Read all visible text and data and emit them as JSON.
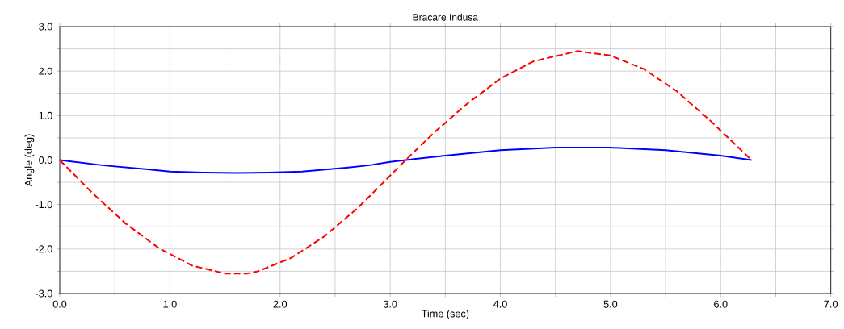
{
  "chart_data": {
    "type": "line",
    "title": "Bracare Indusa",
    "xlabel": "Time (sec)",
    "ylabel": "Angle (deg)",
    "xlim": [
      0,
      7
    ],
    "ylim": [
      -3,
      3
    ],
    "xticks": [
      {
        "value": 0,
        "label": "0.0"
      },
      {
        "value": 0.5,
        "label": null
      },
      {
        "value": 1,
        "label": "1.0"
      },
      {
        "value": 1.5,
        "label": null
      },
      {
        "value": 2,
        "label": "2.0"
      },
      {
        "value": 2.5,
        "label": null
      },
      {
        "value": 3,
        "label": "3.0"
      },
      {
        "value": 3.5,
        "label": null
      },
      {
        "value": 4,
        "label": "4.0"
      },
      {
        "value": 4.5,
        "label": null
      },
      {
        "value": 5,
        "label": "5.0"
      },
      {
        "value": 5.5,
        "label": null
      },
      {
        "value": 6,
        "label": "6.0"
      },
      {
        "value": 6.5,
        "label": null
      },
      {
        "value": 7,
        "label": "7.0"
      }
    ],
    "yticks": [
      {
        "value": -3,
        "label": "-3.0"
      },
      {
        "value": -2.5,
        "label": null
      },
      {
        "value": -2,
        "label": "-2.0"
      },
      {
        "value": -1.5,
        "label": null
      },
      {
        "value": -1,
        "label": "-1.0"
      },
      {
        "value": -0.5,
        "label": null
      },
      {
        "value": 0,
        "label": "0.0"
      },
      {
        "value": 0.5,
        "label": null
      },
      {
        "value": 1,
        "label": "1.0"
      },
      {
        "value": 1.5,
        "label": null
      },
      {
        "value": 2,
        "label": "2.0"
      },
      {
        "value": 2.5,
        "label": null
      },
      {
        "value": 3,
        "label": "3.0"
      }
    ],
    "grid": true,
    "marker": "none",
    "ref_lines": [
      {
        "axis": "y",
        "value": 0,
        "color": "#000000",
        "line_style": "solid"
      }
    ],
    "series": [
      {
        "color": "#0000ff",
        "line_style": "solid",
        "x": [
          0,
          0.4,
          0.8,
          1.0,
          1.3,
          1.6,
          1.9,
          2.2,
          2.6,
          2.8,
          3.0,
          3.14,
          3.5,
          4.0,
          4.5,
          5.0,
          5.5,
          6.0,
          6.28
        ],
        "values": [
          0,
          -0.12,
          -0.21,
          -0.26,
          -0.28,
          -0.29,
          -0.28,
          -0.26,
          -0.17,
          -0.12,
          -0.04,
          0,
          0.1,
          0.22,
          0.28,
          0.28,
          0.22,
          0.1,
          0
        ]
      },
      {
        "color": "#ff0000",
        "line_style": "dashed",
        "x": [
          0,
          0.3,
          0.6,
          0.9,
          1.2,
          1.5,
          1.7,
          1.8,
          2.1,
          2.4,
          2.7,
          3.0,
          3.14,
          3.4,
          3.7,
          4.0,
          4.3,
          4.7,
          5.0,
          5.3,
          5.6,
          5.9,
          6.28
        ],
        "values": [
          0,
          -0.75,
          -1.43,
          -1.98,
          -2.37,
          -2.55,
          -2.55,
          -2.5,
          -2.2,
          -1.72,
          -1.09,
          -0.35,
          0,
          0.62,
          1.27,
          1.83,
          2.22,
          2.45,
          2.35,
          2.05,
          1.55,
          0.9,
          0
        ]
      }
    ]
  }
}
